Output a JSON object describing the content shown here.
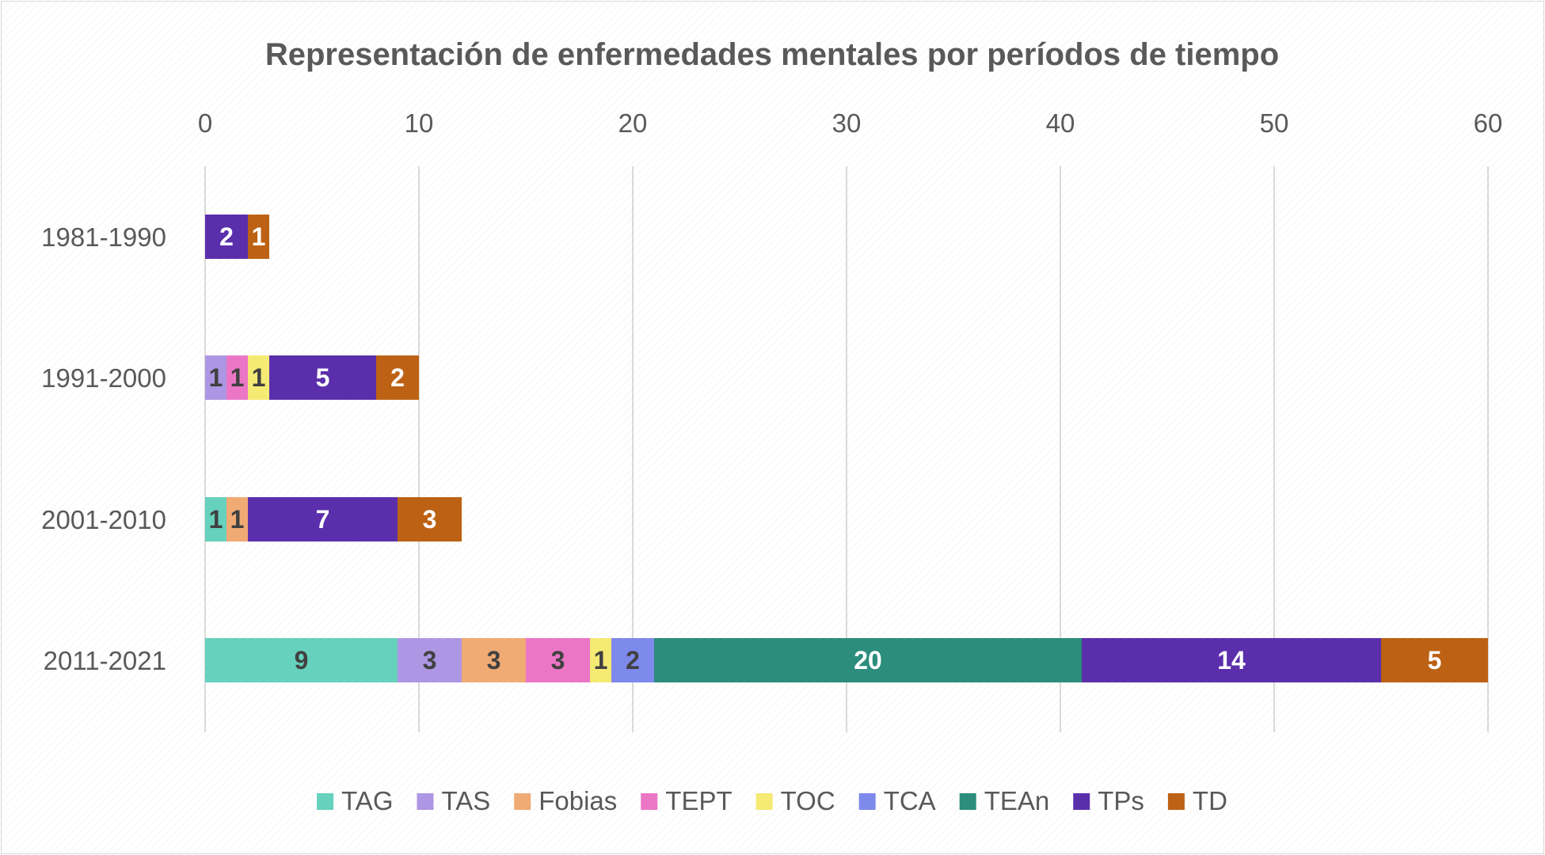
{
  "chart_data": {
    "type": "bar",
    "orientation": "horizontal",
    "stacked": true,
    "title": "Representación de enfermedades mentales por períodos de tiempo",
    "xlabel": "",
    "ylabel": "",
    "xlim": [
      0,
      60
    ],
    "x_ticks": [
      "0",
      "10",
      "20",
      "30",
      "40",
      "50",
      "60"
    ],
    "grid": "vertical",
    "legend_position": "bottom",
    "categories": [
      "1981-1990",
      "1991-2000",
      "2001-2010",
      "2011-2021"
    ],
    "series": [
      {
        "name": "TAG",
        "color": "#66d1bd",
        "label_color": "#404040",
        "values": [
          0,
          0,
          1,
          9
        ]
      },
      {
        "name": "TAS",
        "color": "#ad96e3",
        "label_color": "#404040",
        "values": [
          0,
          1,
          0,
          3
        ]
      },
      {
        "name": "Fobias",
        "color": "#f0aa74",
        "label_color": "#404040",
        "values": [
          0,
          0,
          1,
          3
        ]
      },
      {
        "name": "TEPT",
        "color": "#ec76c6",
        "label_color": "#404040",
        "values": [
          0,
          1,
          0,
          3
        ]
      },
      {
        "name": "TOC",
        "color": "#f5ea73",
        "label_color": "#404040",
        "values": [
          0,
          1,
          0,
          1
        ]
      },
      {
        "name": "TCA",
        "color": "#7e89ec",
        "label_color": "#404040",
        "values": [
          0,
          0,
          0,
          2
        ]
      },
      {
        "name": "TEAn",
        "color": "#2c8d7c",
        "label_color": "#ffffff",
        "values": [
          0,
          0,
          0,
          20
        ]
      },
      {
        "name": "TPs",
        "color": "#5b2fac",
        "label_color": "#ffffff",
        "values": [
          2,
          5,
          7,
          14
        ]
      },
      {
        "name": "TD",
        "color": "#bd6214",
        "label_color": "#ffffff",
        "values": [
          1,
          2,
          3,
          5
        ]
      }
    ]
  }
}
